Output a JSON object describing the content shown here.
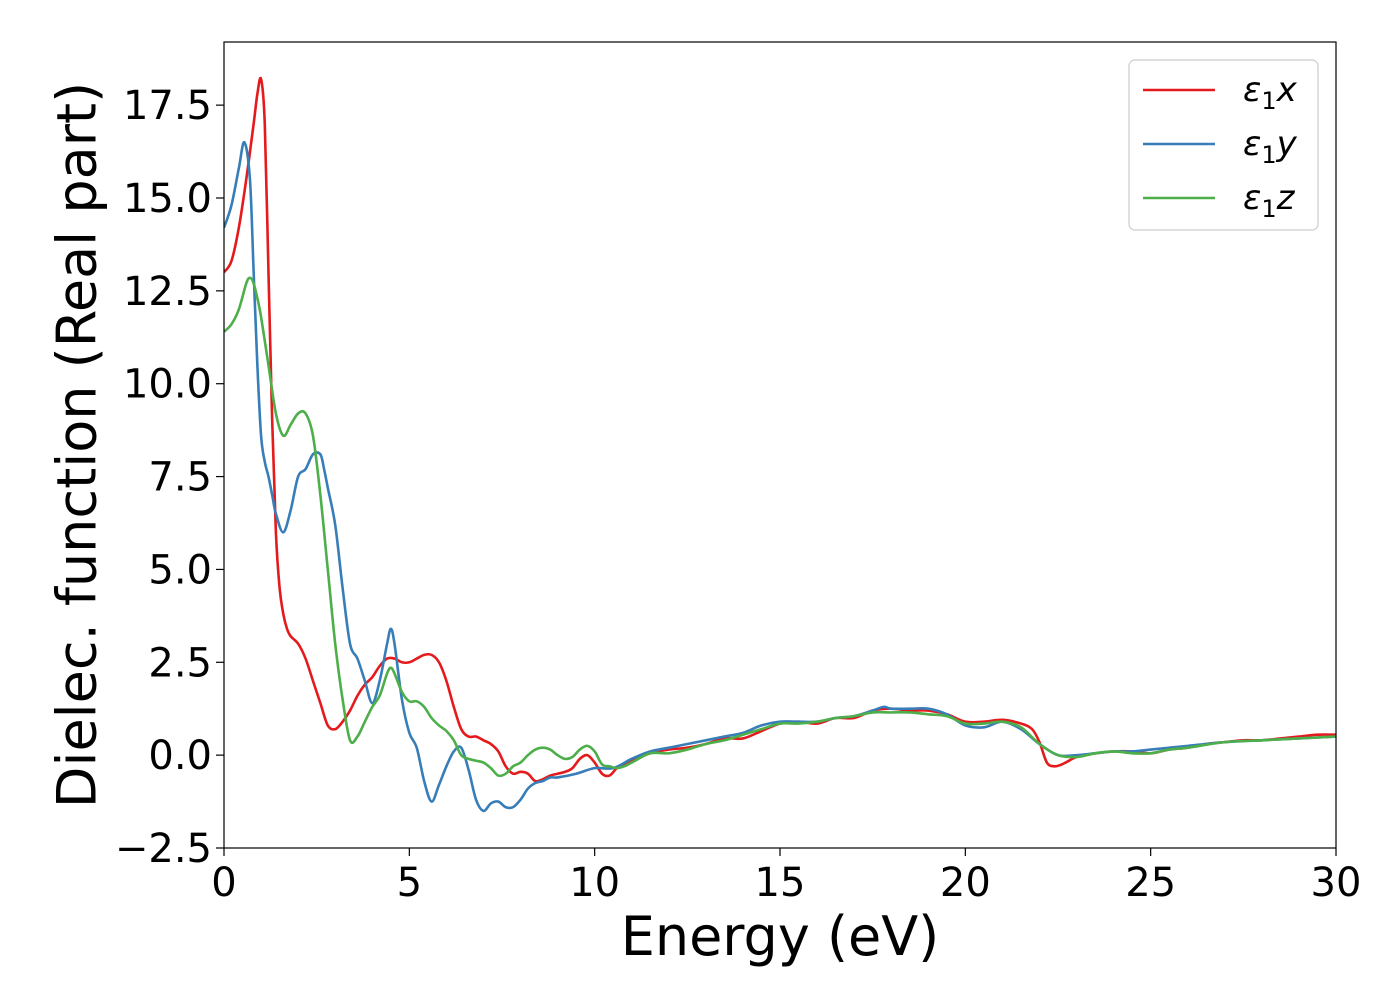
{
  "chart_data": {
    "type": "line",
    "title": "",
    "xlabel": "Energy (eV)",
    "ylabel": "Dielec. function (Real part)",
    "xlim": [
      0,
      30
    ],
    "ylim": [
      -2.5,
      19.2
    ],
    "xticks": [
      0,
      5,
      10,
      15,
      20,
      25,
      30
    ],
    "xtick_labels": [
      "0",
      "5",
      "10",
      "15",
      "20",
      "25",
      "30"
    ],
    "yticks": [
      -2.5,
      0.0,
      2.5,
      5.0,
      7.5,
      10.0,
      12.5,
      15.0,
      17.5
    ],
    "ytick_labels": [
      "−2.5",
      "0.0",
      "2.5",
      "5.0",
      "7.5",
      "10.0",
      "12.5",
      "15.0",
      "17.5"
    ],
    "grid": false,
    "legend_position": "top-right",
    "series": [
      {
        "name": "ε₁x",
        "legend_base": "ε",
        "legend_sub": "1",
        "legend_var": "x",
        "color": "#e41a1c",
        "x": [
          0,
          0.2,
          0.4,
          0.6,
          0.8,
          0.9,
          1.0,
          1.1,
          1.2,
          1.3,
          1.4,
          1.5,
          1.6,
          1.7,
          1.8,
          2.0,
          2.2,
          2.4,
          2.6,
          2.8,
          3.0,
          3.2,
          3.4,
          3.6,
          3.8,
          4.0,
          4.2,
          4.4,
          4.6,
          4.8,
          5.0,
          5.2,
          5.4,
          5.6,
          5.8,
          6.0,
          6.2,
          6.4,
          6.6,
          6.8,
          7.0,
          7.2,
          7.4,
          7.6,
          7.8,
          8.0,
          8.2,
          8.4,
          8.6,
          8.8,
          9.0,
          9.2,
          9.4,
          9.6,
          9.8,
          10.0,
          10.2,
          10.4,
          10.6,
          10.8,
          11.0,
          11.5,
          12.0,
          12.5,
          13.0,
          13.5,
          14.0,
          14.5,
          15.0,
          15.5,
          16.0,
          16.5,
          17.0,
          17.5,
          18.0,
          18.5,
          19.0,
          19.5,
          20.0,
          20.5,
          21.0,
          21.5,
          21.8,
          22.0,
          22.2,
          22.4,
          22.6,
          22.8,
          23.0,
          23.5,
          24.0,
          24.5,
          25.0,
          25.5,
          26.0,
          26.5,
          27.0,
          27.5,
          28.0,
          28.5,
          29.0,
          29.5,
          30.0
        ],
        "y": [
          13.0,
          13.3,
          14.2,
          15.5,
          17.0,
          17.8,
          18.2,
          17.0,
          13.0,
          9.0,
          6.0,
          4.5,
          3.8,
          3.4,
          3.2,
          3.0,
          2.6,
          2.0,
          1.4,
          0.8,
          0.7,
          0.9,
          1.2,
          1.6,
          1.9,
          2.1,
          2.4,
          2.6,
          2.6,
          2.5,
          2.5,
          2.6,
          2.7,
          2.7,
          2.5,
          2.0,
          1.3,
          0.7,
          0.5,
          0.5,
          0.4,
          0.3,
          0.1,
          -0.3,
          -0.5,
          -0.45,
          -0.5,
          -0.7,
          -0.65,
          -0.55,
          -0.5,
          -0.45,
          -0.35,
          -0.1,
          0.0,
          -0.2,
          -0.5,
          -0.55,
          -0.35,
          -0.25,
          -0.15,
          0.05,
          0.15,
          0.2,
          0.3,
          0.45,
          0.45,
          0.65,
          0.85,
          0.9,
          0.85,
          1.0,
          1.0,
          1.2,
          1.25,
          1.2,
          1.2,
          1.1,
          0.9,
          0.9,
          0.95,
          0.85,
          0.7,
          0.35,
          -0.2,
          -0.3,
          -0.25,
          -0.15,
          -0.05,
          0.05,
          0.1,
          0.1,
          0.05,
          0.15,
          0.2,
          0.3,
          0.35,
          0.4,
          0.4,
          0.45,
          0.5,
          0.55,
          0.55
        ]
      },
      {
        "name": "ε₁y",
        "legend_base": "ε",
        "legend_sub": "1",
        "legend_var": "y",
        "color": "#377eb8",
        "x": [
          0,
          0.2,
          0.4,
          0.55,
          0.7,
          0.8,
          0.9,
          1.0,
          1.1,
          1.2,
          1.3,
          1.4,
          1.6,
          1.8,
          2.0,
          2.2,
          2.4,
          2.6,
          2.7,
          2.8,
          3.0,
          3.2,
          3.4,
          3.6,
          3.8,
          4.0,
          4.2,
          4.4,
          4.5,
          4.6,
          4.8,
          5.0,
          5.2,
          5.4,
          5.6,
          5.8,
          6.0,
          6.2,
          6.4,
          6.6,
          6.8,
          7.0,
          7.2,
          7.4,
          7.6,
          7.8,
          8.0,
          8.2,
          8.4,
          8.6,
          8.8,
          9.0,
          9.5,
          10.0,
          10.5,
          11.0,
          11.5,
          12.0,
          12.5,
          13.0,
          13.5,
          14.0,
          14.5,
          15.0,
          15.5,
          16.0,
          16.5,
          17.0,
          17.5,
          17.8,
          18.0,
          18.5,
          19.0,
          19.5,
          20.0,
          20.5,
          21.0,
          21.5,
          22.0,
          22.5,
          23.0,
          23.5,
          24.0,
          24.5,
          25.0,
          25.5,
          26.0,
          27.0,
          28.0,
          29.0,
          30.0
        ],
        "y": [
          14.2,
          14.8,
          15.8,
          16.5,
          15.5,
          13.0,
          10.5,
          8.6,
          7.9,
          7.5,
          7.0,
          6.5,
          6.0,
          6.6,
          7.5,
          7.7,
          8.1,
          8.1,
          7.7,
          7.2,
          6.2,
          4.5,
          3.0,
          2.6,
          2.0,
          1.4,
          2.0,
          3.0,
          3.4,
          3.0,
          1.5,
          0.6,
          0.2,
          -0.7,
          -1.25,
          -0.8,
          -0.3,
          0.1,
          0.2,
          -0.4,
          -1.2,
          -1.5,
          -1.3,
          -1.25,
          -1.4,
          -1.4,
          -1.2,
          -0.9,
          -0.75,
          -0.7,
          -0.6,
          -0.6,
          -0.5,
          -0.35,
          -0.35,
          -0.1,
          0.1,
          0.2,
          0.3,
          0.4,
          0.5,
          0.6,
          0.8,
          0.9,
          0.9,
          0.9,
          1.0,
          1.05,
          1.2,
          1.3,
          1.25,
          1.25,
          1.25,
          1.1,
          0.8,
          0.75,
          0.9,
          0.7,
          0.3,
          0.0,
          0.0,
          0.05,
          0.1,
          0.1,
          0.15,
          0.2,
          0.25,
          0.35,
          0.4,
          0.45,
          0.5
        ]
      },
      {
        "name": "ε₁z",
        "legend_base": "ε",
        "legend_sub": "1",
        "legend_var": "z",
        "color": "#4daf4a",
        "x": [
          0,
          0.2,
          0.4,
          0.6,
          0.7,
          0.8,
          0.9,
          1.0,
          1.2,
          1.4,
          1.6,
          1.8,
          2.0,
          2.2,
          2.4,
          2.6,
          2.8,
          3.0,
          3.2,
          3.4,
          3.6,
          3.8,
          4.0,
          4.2,
          4.4,
          4.5,
          4.6,
          4.8,
          5.0,
          5.2,
          5.4,
          5.6,
          5.8,
          6.0,
          6.2,
          6.4,
          6.6,
          6.8,
          7.0,
          7.2,
          7.4,
          7.6,
          7.8,
          8.0,
          8.2,
          8.4,
          8.6,
          8.8,
          9.0,
          9.2,
          9.4,
          9.6,
          9.8,
          10.0,
          10.2,
          10.4,
          10.6,
          10.8,
          11.0,
          11.5,
          12.0,
          12.5,
          13.0,
          13.5,
          14.0,
          14.5,
          15.0,
          15.5,
          16.0,
          16.5,
          17.0,
          17.5,
          18.0,
          18.5,
          19.0,
          19.5,
          20.0,
          20.5,
          21.0,
          21.5,
          22.0,
          22.5,
          23.0,
          23.5,
          24.0,
          24.5,
          25.0,
          25.5,
          26.0,
          27.0,
          28.0,
          29.0,
          30.0
        ],
        "y": [
          11.4,
          11.6,
          12.0,
          12.7,
          12.85,
          12.7,
          12.3,
          11.8,
          10.5,
          9.2,
          8.6,
          8.9,
          9.2,
          9.2,
          8.6,
          7.0,
          5.0,
          3.0,
          1.5,
          0.4,
          0.5,
          0.9,
          1.3,
          1.6,
          2.2,
          2.35,
          2.2,
          1.7,
          1.45,
          1.45,
          1.3,
          1.0,
          0.8,
          0.65,
          0.4,
          0.0,
          -0.1,
          -0.15,
          -0.2,
          -0.35,
          -0.55,
          -0.5,
          -0.3,
          -0.2,
          0.0,
          0.15,
          0.2,
          0.15,
          0.0,
          -0.1,
          -0.05,
          0.15,
          0.25,
          0.1,
          -0.25,
          -0.3,
          -0.35,
          -0.3,
          -0.2,
          0.05,
          0.05,
          0.15,
          0.3,
          0.4,
          0.55,
          0.7,
          0.85,
          0.85,
          0.9,
          1.0,
          1.05,
          1.15,
          1.15,
          1.15,
          1.1,
          1.05,
          0.85,
          0.85,
          0.9,
          0.75,
          0.3,
          0.0,
          -0.05,
          0.05,
          0.1,
          0.05,
          0.05,
          0.15,
          0.2,
          0.35,
          0.4,
          0.45,
          0.5
        ]
      }
    ]
  }
}
